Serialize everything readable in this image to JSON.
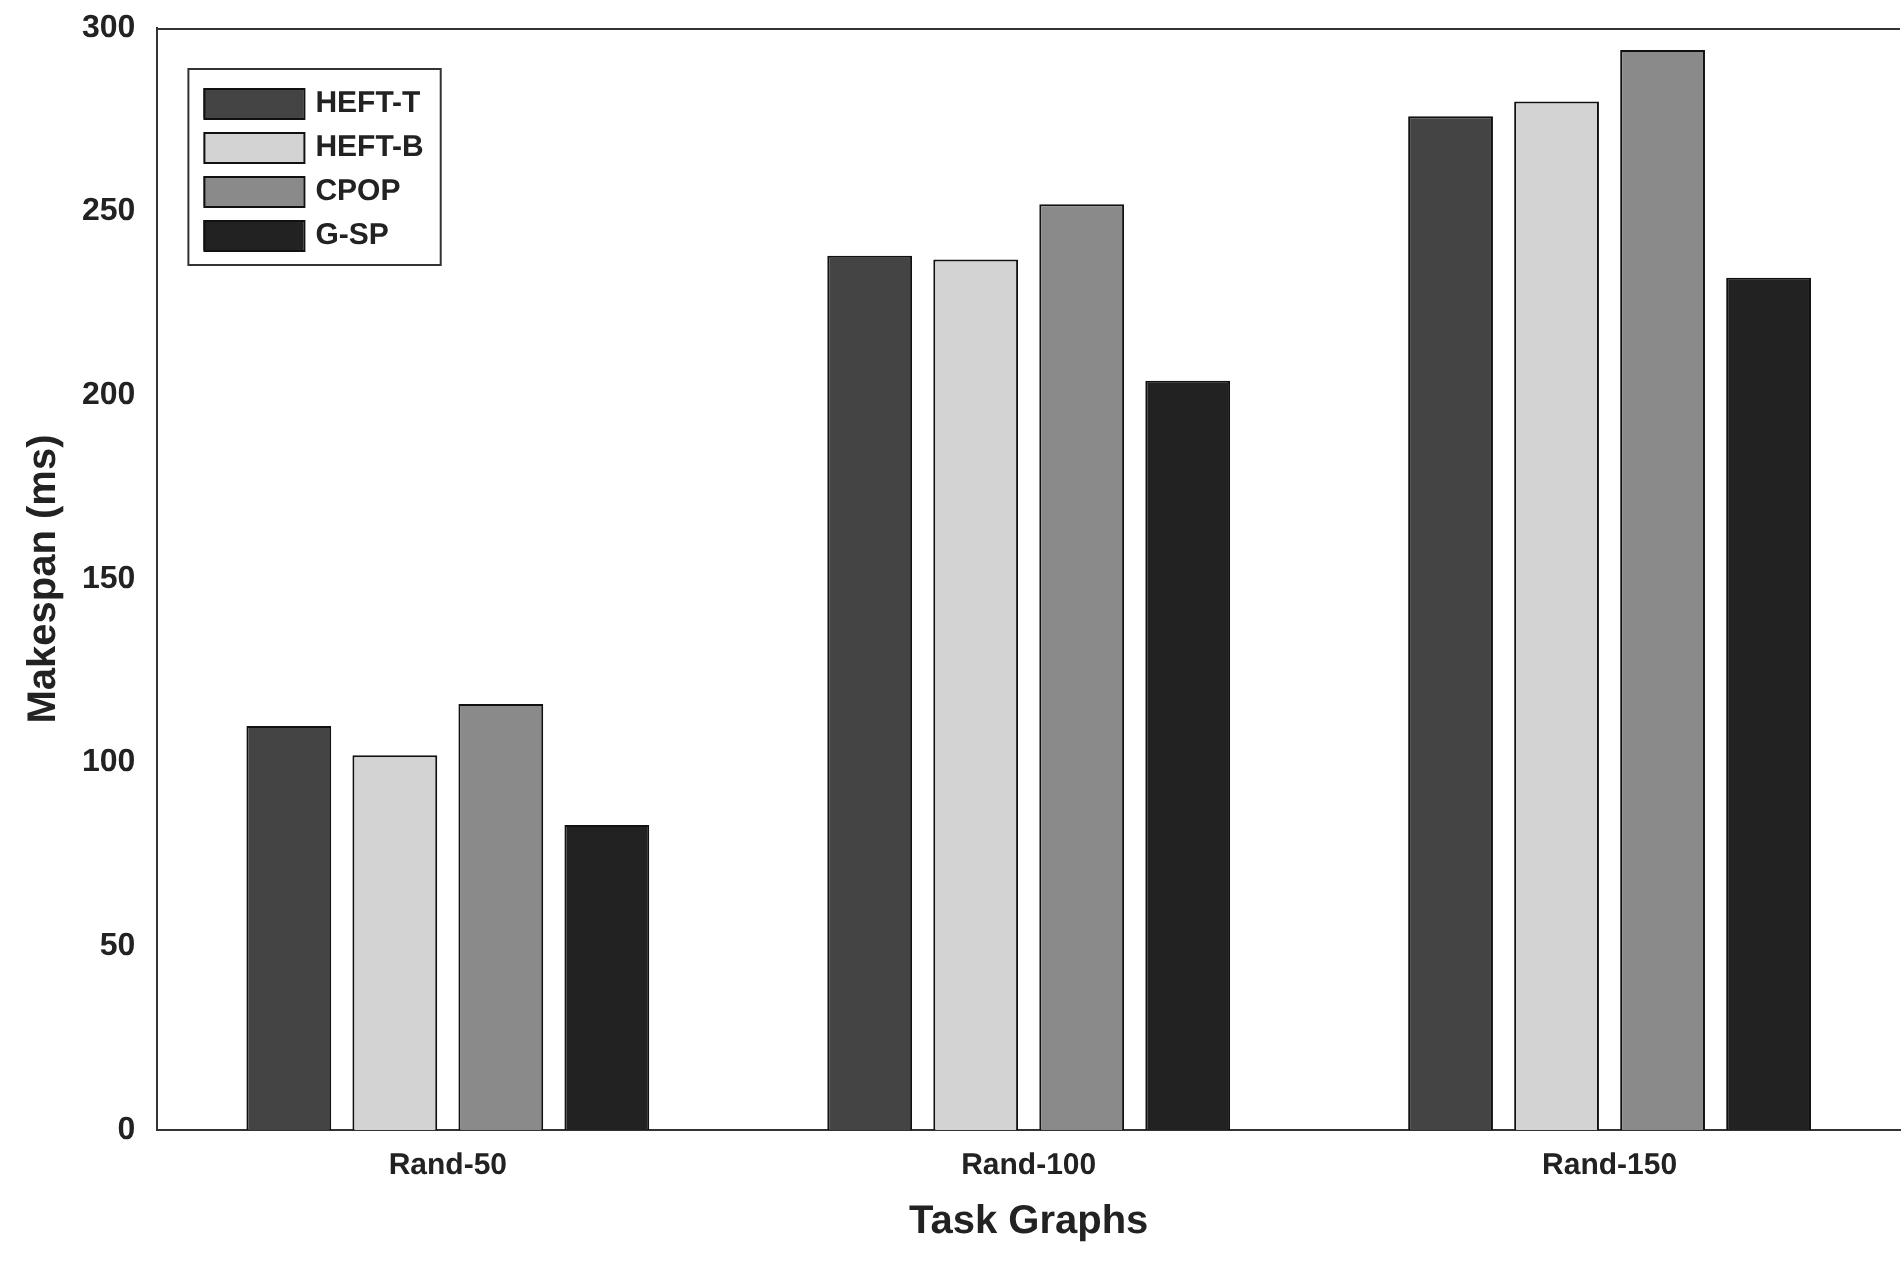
{
  "chart_data": {
    "type": "bar",
    "xlabel": "Task Graphs",
    "ylabel": "Makespan (ms)",
    "categories": [
      "Rand-50",
      "Rand-100",
      "Rand-150"
    ],
    "series": [
      {
        "name": "HEFT-T",
        "color": "#444444",
        "values": [
          110,
          238,
          276
        ]
      },
      {
        "name": "HEFT-B",
        "color": "#d3d3d3",
        "values": [
          102,
          237,
          280
        ]
      },
      {
        "name": "CPOP",
        "color": "#8a8a8a",
        "values": [
          116,
          252,
          294
        ]
      },
      {
        "name": "G-SP",
        "color": "#222222",
        "values": [
          83,
          204,
          232
        ]
      }
    ],
    "ylim": [
      0,
      300
    ],
    "yticks": [
      0,
      50,
      100,
      150,
      200,
      250,
      300
    ],
    "grid": false,
    "legend": "top left"
  }
}
